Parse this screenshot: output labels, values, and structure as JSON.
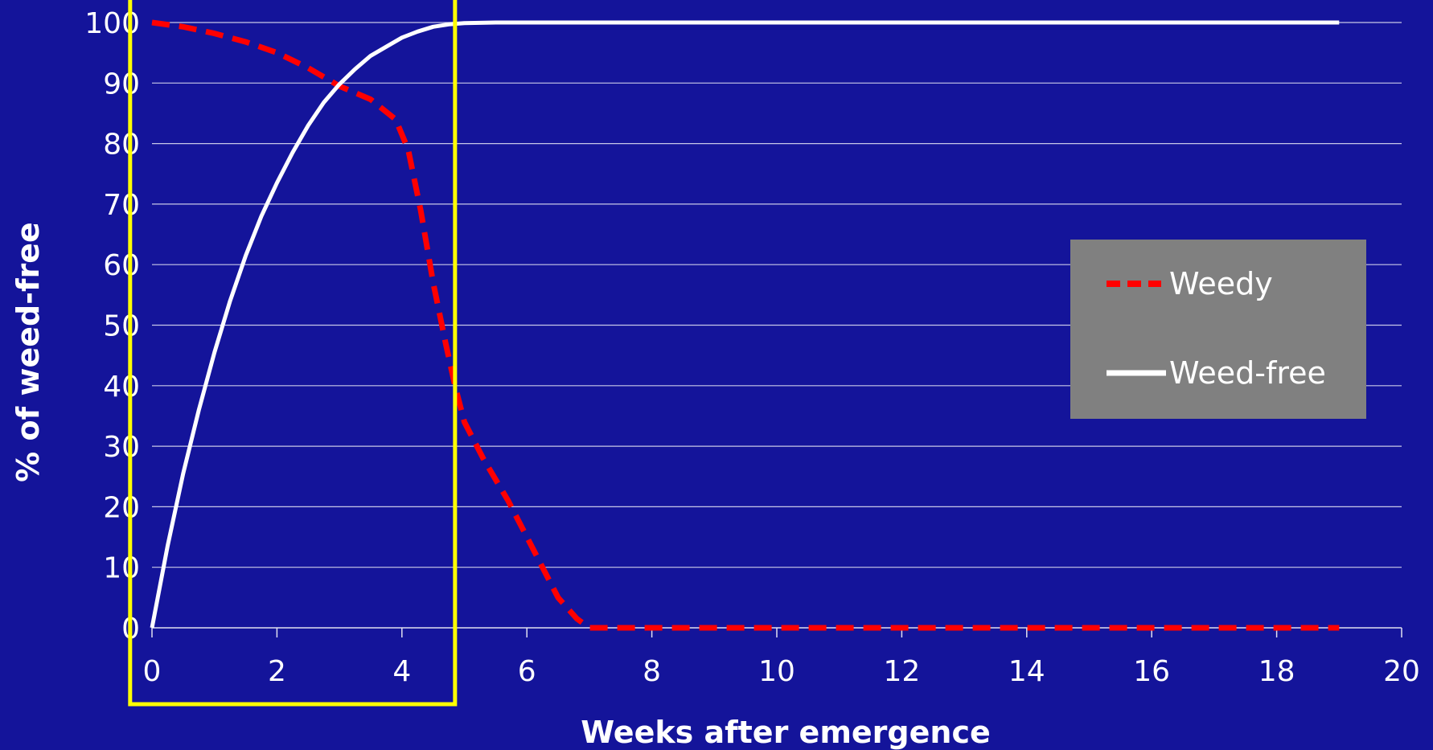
{
  "chart_data": {
    "type": "line",
    "xlabel": "Weeks after emergence",
    "ylabel": "% of weed-free",
    "xlim": [
      0,
      20
    ],
    "ylim": [
      0,
      100
    ],
    "xticks": [
      0,
      2,
      4,
      6,
      8,
      10,
      12,
      14,
      16,
      18,
      20
    ],
    "yticks": [
      0,
      10,
      20,
      30,
      40,
      50,
      60,
      70,
      80,
      90,
      100
    ],
    "grid": "horizontal",
    "legend_position": "right",
    "highlight_box": {
      "x_range": [
        -0.35,
        4.85
      ],
      "color": "#ffff00"
    },
    "series": [
      {
        "name": "Weedy",
        "style": "dashed",
        "color": "#ff0000",
        "x": [
          0,
          0.5,
          1,
          1.5,
          2,
          2.5,
          3,
          3.5,
          3.9,
          4.1,
          4.3,
          4.5,
          4.7,
          4.85,
          5,
          5.3,
          5.7,
          6.1,
          6.5,
          6.8,
          7,
          7.5,
          8,
          10,
          12,
          14,
          16,
          18,
          19
        ],
        "y": [
          100,
          99.3,
          98.2,
          96.8,
          95,
          92.5,
          89.5,
          87.3,
          84,
          79,
          69,
          57,
          47,
          40,
          34,
          28,
          21,
          13,
          5,
          1.5,
          0,
          0,
          0,
          0,
          0,
          0,
          0,
          0,
          0
        ]
      },
      {
        "name": "Weed-free",
        "style": "solid",
        "color": "#ffffff",
        "x": [
          0,
          0.25,
          0.5,
          0.75,
          1,
          1.25,
          1.5,
          1.75,
          2,
          2.25,
          2.5,
          2.75,
          3,
          3.25,
          3.5,
          3.75,
          4,
          4.25,
          4.5,
          4.75,
          5,
          5.5,
          6,
          8,
          10,
          12,
          14,
          16,
          18,
          19
        ],
        "y": [
          0,
          13.5,
          25.5,
          36,
          45.5,
          54,
          61.5,
          68,
          73.5,
          78.5,
          83,
          86.8,
          89.8,
          92.3,
          94.5,
          96,
          97.5,
          98.5,
          99.3,
          99.7,
          99.9,
          100,
          100,
          100,
          100,
          100,
          100,
          100,
          100,
          100
        ]
      }
    ]
  },
  "legend": {
    "background": "#808080",
    "items": [
      {
        "label": "Weedy"
      },
      {
        "label": "Weed-free"
      }
    ]
  }
}
